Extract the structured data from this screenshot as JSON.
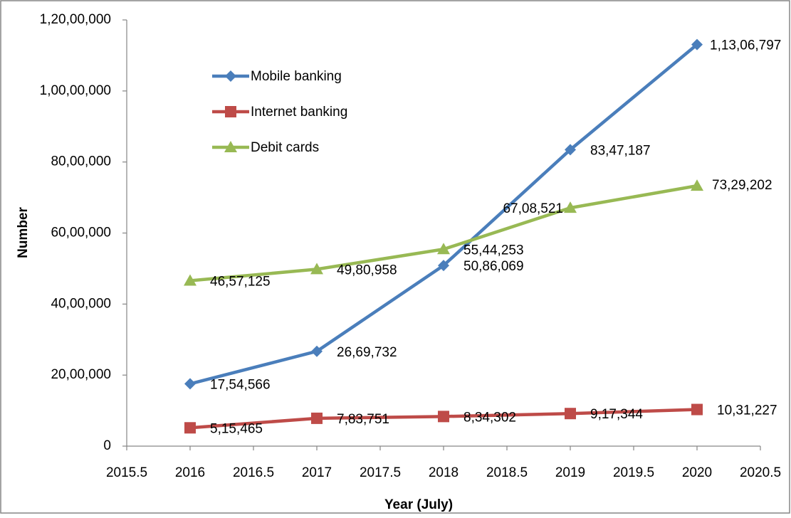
{
  "chart_data": {
    "type": "line",
    "x_label": "Year (July)",
    "y_label": "Number",
    "x": [
      2016,
      2017,
      2018,
      2019,
      2020
    ],
    "xlim": [
      2015.5,
      2020.5
    ],
    "xticks": [
      2015.5,
      2016,
      2016.5,
      2017,
      2017.5,
      2018,
      2018.5,
      2019,
      2019.5,
      2020,
      2020.5
    ],
    "ylim": [
      0,
      12000000
    ],
    "yticks": [
      0,
      {
        "value": 2000000,
        "label": "20,00,000"
      },
      {
        "value": 4000000,
        "label": "40,00,000"
      },
      {
        "value": 6000000,
        "label": "60,00,000"
      },
      {
        "value": 8000000,
        "label": "80,00,000"
      },
      {
        "value": 10000000,
        "label": "1,00,00,000"
      },
      {
        "value": 12000000,
        "label": "1,20,00,000"
      }
    ],
    "grid": false,
    "legend": "upper left",
    "series": [
      {
        "name": "Mobile banking",
        "color": "#4a7ebb",
        "marker": "diamond",
        "values": [
          1754566,
          2669732,
          5086069,
          8347187,
          11306797
        ],
        "value_labels": [
          "17,54,566",
          "26,69,732",
          "50,86,069",
          "83,47,187",
          "1,13,06,797"
        ]
      },
      {
        "name": "Internet banking",
        "color": "#be4b48",
        "marker": "square",
        "values": [
          515465,
          783751,
          834302,
          917344,
          1031227
        ],
        "value_labels": [
          "5,15,465",
          "7,83,751",
          "8,34,302",
          "9,17,344",
          "10,31,227"
        ]
      },
      {
        "name": "Debit cards",
        "color": "#98b954",
        "marker": "triangle",
        "values": [
          4657125,
          4980958,
          5544253,
          6708521,
          7329202
        ],
        "value_labels": [
          "46,57,125",
          "49,80,958",
          "55,44,253",
          "67,08,521",
          "73,29,202"
        ]
      }
    ]
  }
}
